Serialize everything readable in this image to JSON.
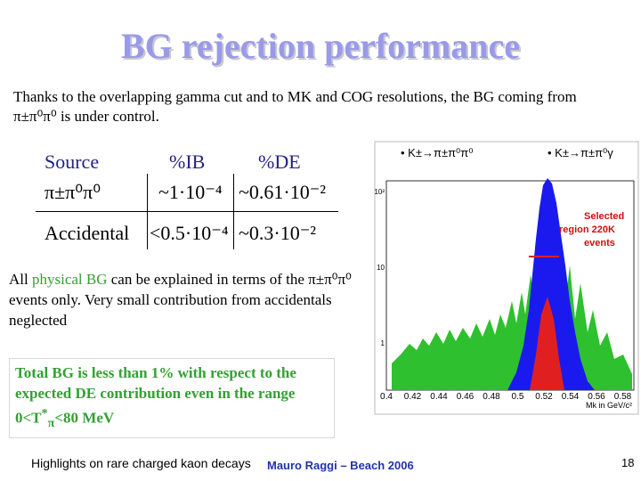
{
  "title": "BG rejection performance",
  "intro": "Thanks to the overlapping gamma cut and to MK and COG resolutions, the BG coming from π±π⁰π⁰ is under control.",
  "table": {
    "header": [
      "Source",
      "%IB",
      "%DE"
    ],
    "rows": [
      [
        "π±π⁰π⁰",
        "~1·10⁻⁴",
        "~0.61·10⁻²"
      ],
      [
        "Accidental",
        "<0.5·10⁻⁴",
        "~0.3·10⁻²"
      ]
    ]
  },
  "paragraph": [
    "All ",
    "physical BG",
    " can be explained in terms of the π±π⁰π⁰ events only. Very small contribution from accidentals neglected"
  ],
  "highlight": [
    "Total BG is less than 1% with respect to the expected DE contribution even in the range 0<T",
    "*",
    "π",
    "<80 MeV"
  ],
  "plot": {
    "label_left": "• K±→π±π⁰π⁰",
    "label_right": "• K±→π±π⁰γ",
    "annotation": [
      "Selected",
      "region 220K",
      "events"
    ],
    "x_labels": [
      "0.4",
      "0.42",
      "0.44",
      "0.46",
      "0.48",
      "0.5",
      "0.52",
      "0.54",
      "0.56",
      "0.58"
    ],
    "y_labels": [
      "10²",
      "10",
      "1"
    ],
    "x_title": "Mk in GeV/c²"
  },
  "footer": {
    "left": "Highlights on rare charged kaon decays",
    "center": "Mauro Raggi – Beach 2006",
    "page": "18"
  }
}
